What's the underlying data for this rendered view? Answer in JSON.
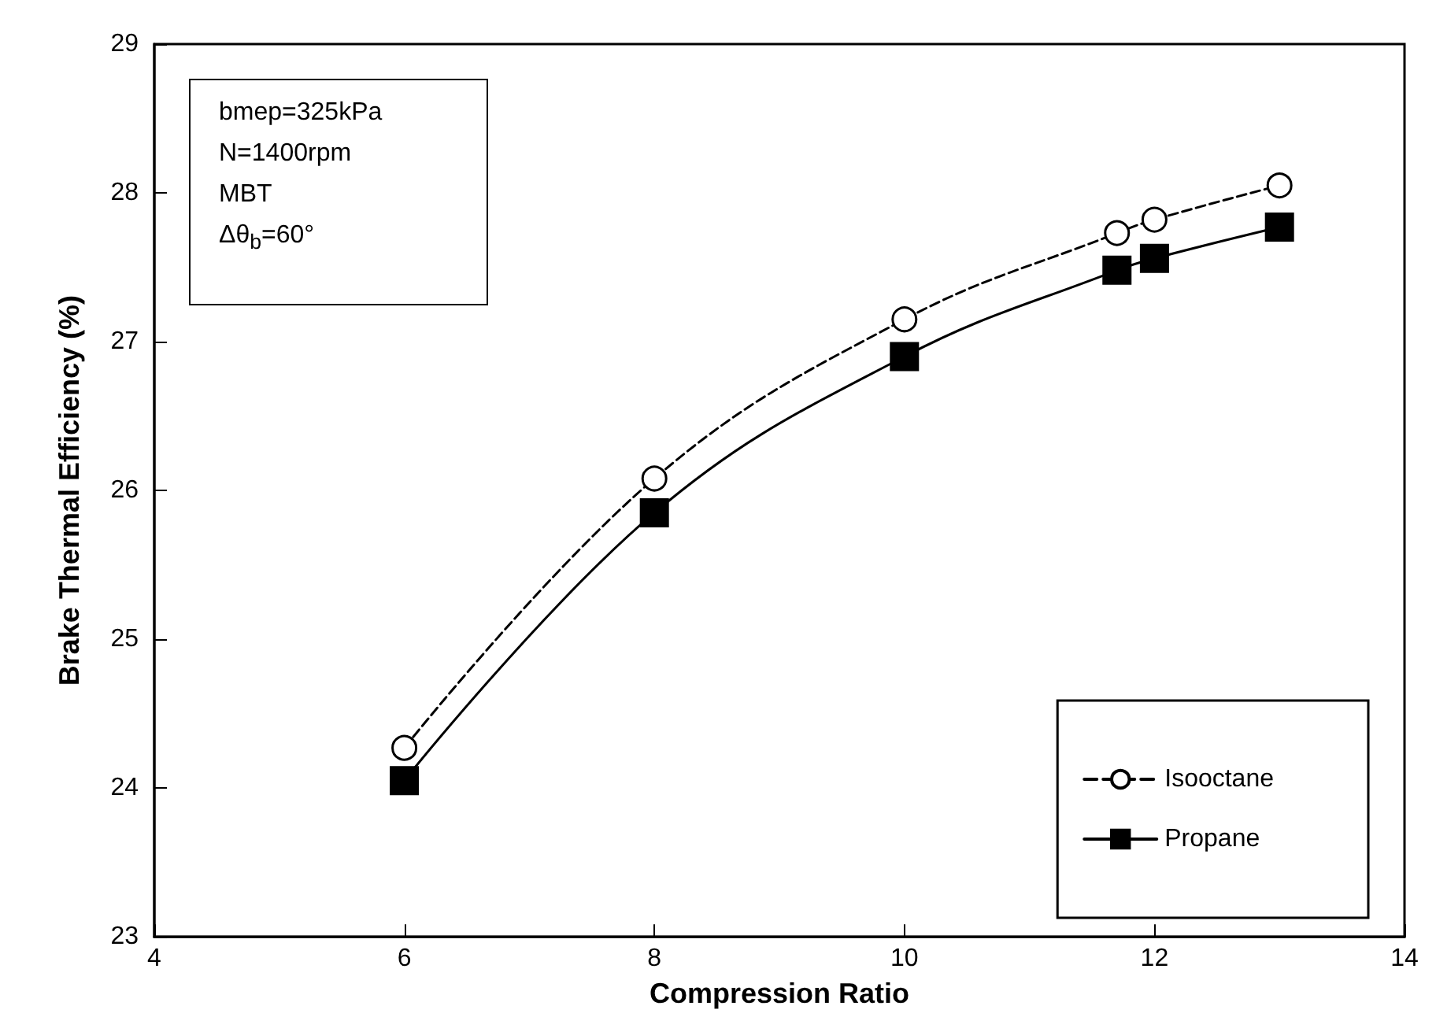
{
  "chart_data": {
    "type": "line",
    "xlabel": "Compression Ratio",
    "ylabel": "Brake Thermal Efficiency (%)",
    "xlim": [
      4,
      14
    ],
    "xticks": [
      4,
      6,
      8,
      10,
      12,
      14
    ],
    "ylim": [
      23,
      29
    ],
    "yticks": [
      23,
      24,
      25,
      26,
      27,
      28,
      29
    ],
    "grid": false,
    "legend": "bottom right",
    "annotations": [
      "bmep=325kPa",
      "N=1400rpm",
      "MBT",
      "Δθ$_{b}$=60°"
    ],
    "series": [
      {
        "name": "Isooctane",
        "color": "#000000",
        "marker": "circle",
        "line_style": "dashed",
        "x": [
          6,
          8,
          10,
          11.7,
          12,
          13
        ],
        "values": [
          24.27,
          26.08,
          27.15,
          27.73,
          27.82,
          28.05
        ]
      },
      {
        "name": "Propane",
        "color": "#000000",
        "marker": "square",
        "line_style": "solid",
        "x": [
          6,
          8,
          10,
          11.7,
          12,
          13
        ],
        "values": [
          24.05,
          25.85,
          26.9,
          27.48,
          27.56,
          27.77
        ]
      }
    ]
  }
}
